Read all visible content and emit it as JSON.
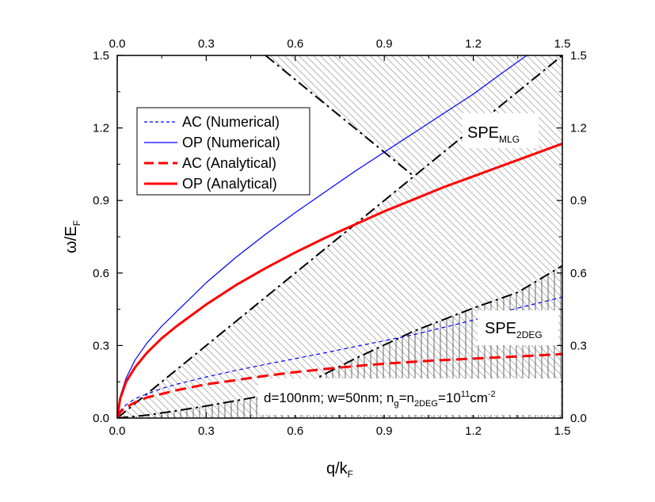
{
  "chart_data": {
    "type": "line",
    "xlabel": {
      "main": "q/k",
      "sub": "F"
    },
    "ylabel": {
      "main": "ω/E",
      "sub": "F"
    },
    "xlim": [
      0,
      1.5
    ],
    "ylim": [
      0,
      1.5
    ],
    "xticks": [
      "0.0",
      "0.3",
      "0.6",
      "0.9",
      "1.2",
      "1.5"
    ],
    "yticks": [
      "0.0",
      "0.3",
      "0.6",
      "0.9",
      "1.2",
      "1.5"
    ],
    "secondary_x_axis": "top",
    "secondary_y_axis": "right",
    "grid": false,
    "legend_position": "top-left",
    "series": [
      {
        "name": "AC (Numerical)",
        "color": "#0000ff",
        "dash": "dashed",
        "weight": "thin",
        "x": [
          0,
          0.01,
          0.03,
          0.06,
          0.1,
          0.15,
          0.2,
          0.3,
          0.4,
          0.5,
          0.6,
          0.7,
          0.8,
          0.9,
          1.0,
          1.1,
          1.2,
          1.3,
          1.4,
          1.5
        ],
        "y": [
          0,
          0.03,
          0.055,
          0.08,
          0.1,
          0.122,
          0.14,
          0.17,
          0.197,
          0.222,
          0.246,
          0.27,
          0.295,
          0.32,
          0.345,
          0.375,
          0.405,
          0.44,
          0.47,
          0.5
        ]
      },
      {
        "name": "OP (Numerical)",
        "color": "#0000ff",
        "dash": "solid",
        "weight": "thin",
        "x": [
          0,
          0.01,
          0.03,
          0.06,
          0.1,
          0.15,
          0.2,
          0.3,
          0.4,
          0.5,
          0.6,
          0.7,
          0.8,
          0.9,
          1.0,
          1.1,
          1.2,
          1.3,
          1.38
        ],
        "y": [
          0,
          0.09,
          0.165,
          0.24,
          0.31,
          0.38,
          0.44,
          0.56,
          0.665,
          0.76,
          0.85,
          0.935,
          1.02,
          1.1,
          1.18,
          1.26,
          1.34,
          1.43,
          1.5
        ]
      },
      {
        "name": "AC (Analytical)",
        "color": "#ff0000",
        "dash": "dashed",
        "weight": "thick",
        "x": [
          0,
          0.01,
          0.03,
          0.06,
          0.1,
          0.15,
          0.2,
          0.3,
          0.4,
          0.5,
          0.6,
          0.7,
          0.8,
          0.9,
          1.0,
          1.1,
          1.2,
          1.3,
          1.4,
          1.5
        ],
        "y": [
          0,
          0.025,
          0.045,
          0.065,
          0.085,
          0.1,
          0.115,
          0.14,
          0.157,
          0.175,
          0.19,
          0.203,
          0.215,
          0.225,
          0.233,
          0.24,
          0.246,
          0.252,
          0.258,
          0.265
        ]
      },
      {
        "name": "OP (Analytical)",
        "color": "#ff0000",
        "dash": "solid",
        "weight": "thick",
        "x": [
          0,
          0.01,
          0.03,
          0.06,
          0.1,
          0.15,
          0.2,
          0.3,
          0.4,
          0.5,
          0.6,
          0.7,
          0.8,
          0.9,
          1.0,
          1.1,
          1.2,
          1.3,
          1.4,
          1.5
        ],
        "y": [
          0,
          0.08,
          0.15,
          0.21,
          0.27,
          0.33,
          0.38,
          0.47,
          0.55,
          0.62,
          0.685,
          0.745,
          0.8,
          0.855,
          0.905,
          0.955,
          1.0,
          1.045,
          1.09,
          1.135
        ]
      }
    ],
    "boundary_lines": [
      {
        "role": "SPE MLG lower boundary",
        "style": "dash-dot",
        "x": [
          0,
          1.5
        ],
        "y": [
          0,
          1.5
        ]
      },
      {
        "role": "SPE MLG upper boundary",
        "style": "dash-dot",
        "x": [
          0.5,
          1.0
        ],
        "y": [
          1.5,
          1.0
        ]
      },
      {
        "role": "SPE 2DEG boundary",
        "style": "dash-dot",
        "x": [
          0,
          0.1,
          0.2,
          0.3,
          0.45,
          0.6,
          0.8,
          1.0,
          1.2,
          1.35,
          1.5
        ],
        "y": [
          0,
          0.012,
          0.03,
          0.05,
          0.083,
          0.12,
          0.245,
          0.36,
          0.455,
          0.52,
          0.63
        ]
      }
    ],
    "regions": [
      {
        "label": {
          "main": "SPE",
          "sub": "MLG"
        },
        "hatch": "diagonal"
      },
      {
        "label": {
          "main": "SPE",
          "sub": "2DEG"
        },
        "hatch": "vertical"
      }
    ],
    "annotation": {
      "parts": [
        "d=100nm; w=50nm; n",
        "g",
        "=n",
        "2DEG",
        "=10",
        "11",
        "cm",
        "-2"
      ]
    }
  }
}
